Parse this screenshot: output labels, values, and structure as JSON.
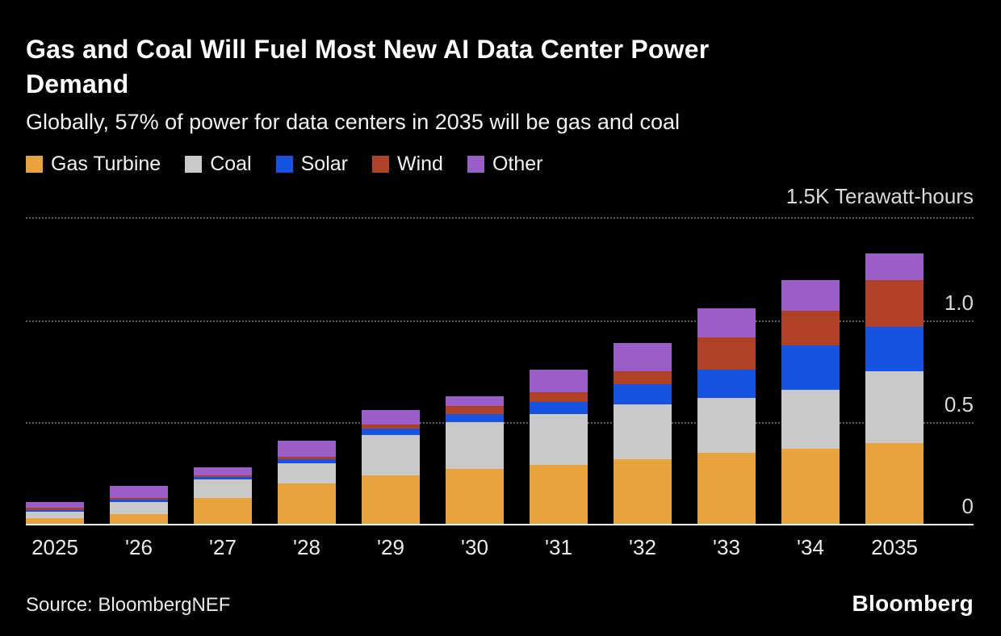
{
  "header": {
    "title": "Gas and Coal Will Fuel Most New AI Data Center Power Demand",
    "subtitle": "Globally, 57% of power for data centers in 2035 will be gas and coal"
  },
  "chart_data": {
    "type": "bar",
    "stacked": true,
    "title": "Gas and Coal Will Fuel Most New AI Data Center Power Demand",
    "subtitle": "Globally, 57% of power for data centers in 2035 will be gas and coal",
    "unit_label": "1.5K Terawatt-hours",
    "ylabel": "Terawatt-hours",
    "ylim": [
      0,
      1.5
    ],
    "grid": "dotted-horizontal",
    "legend_position": "top",
    "categories": [
      "2025",
      "'26",
      "'27",
      "'28",
      "'29",
      "'30",
      "'31",
      "'32",
      "'33",
      "'34",
      "2035"
    ],
    "series": [
      {
        "name": "Gas Turbine",
        "color": "#E8A33D",
        "values": [
          0.03,
          0.05,
          0.13,
          0.2,
          0.24,
          0.27,
          0.29,
          0.32,
          0.35,
          0.37,
          0.4
        ]
      },
      {
        "name": "Coal",
        "color": "#C9C9C9",
        "values": [
          0.03,
          0.06,
          0.09,
          0.1,
          0.2,
          0.23,
          0.25,
          0.27,
          0.27,
          0.29,
          0.35
        ]
      },
      {
        "name": "Solar",
        "color": "#1553E0",
        "values": [
          0.01,
          0.01,
          0.01,
          0.02,
          0.03,
          0.04,
          0.06,
          0.1,
          0.14,
          0.22,
          0.22
        ]
      },
      {
        "name": "Wind",
        "color": "#AF4226",
        "values": [
          0.01,
          0.01,
          0.01,
          0.01,
          0.02,
          0.04,
          0.05,
          0.06,
          0.16,
          0.17,
          0.23
        ]
      },
      {
        "name": "Other",
        "color": "#9B5EC8",
        "values": [
          0.03,
          0.06,
          0.04,
          0.08,
          0.07,
          0.05,
          0.11,
          0.14,
          0.14,
          0.15,
          0.13
        ]
      }
    ],
    "y_ticks": [
      {
        "label": "0",
        "value": 0
      },
      {
        "label": "0.5",
        "value": 0.5
      },
      {
        "label": "1.0",
        "value": 1.0
      }
    ]
  },
  "footer": {
    "source": "Source: BloombergNEF",
    "logo": "Bloomberg"
  }
}
